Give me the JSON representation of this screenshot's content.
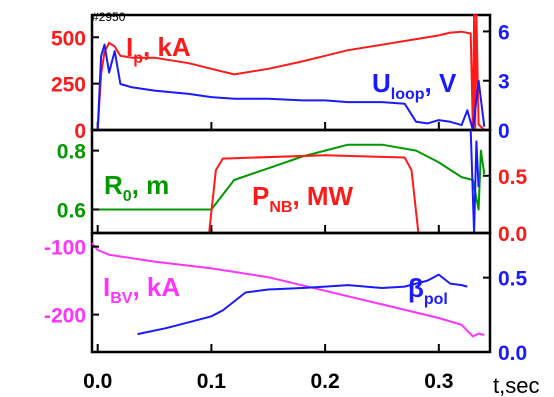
{
  "chart_data": {
    "type": "line",
    "shot": "#2950",
    "x_tick_labels": [
      "0.0",
      "0.1",
      "0.2",
      "0.3"
    ],
    "x_ticks": [
      0.0,
      0.1,
      0.2,
      0.3
    ],
    "xlim": [
      -0.005,
      0.345
    ],
    "xlabel": "t,sec",
    "colors": {
      "red": "#ff1a1a",
      "blue": "#1a1aff",
      "green": "#009900",
      "magenta": "#ff33ff",
      "black": "#000000"
    },
    "panels": [
      {
        "id": "top",
        "left_axis": {
          "ylim": [
            0,
            620
          ],
          "ticks": [
            0,
            250,
            500
          ],
          "tick_labels": [
            "0",
            "250",
            "500"
          ],
          "color": "#ff1a1a"
        },
        "right_axis": {
          "ylim": [
            0,
            7
          ],
          "ticks": [
            0,
            3,
            6
          ],
          "tick_labels": [
            "0",
            "3",
            "6"
          ],
          "color": "#1a1aff"
        },
        "series": [
          {
            "name": "Ip, kA",
            "label_main": "I",
            "label_sub": "p",
            "label_rest": ", kA",
            "axis": "left",
            "color": "#ff1a1a",
            "x": [
              0.0,
              0.003,
              0.006,
              0.01,
              0.015,
              0.02,
              0.03,
              0.05,
              0.08,
              0.1,
              0.12,
              0.15,
              0.18,
              0.2,
              0.22,
              0.25,
              0.28,
              0.3,
              0.31,
              0.32,
              0.328,
              0.33,
              0.331,
              0.332,
              0.333,
              0.335,
              0.34
            ],
            "y": [
              0,
              300,
              420,
              470,
              450,
              400,
              390,
              390,
              360,
              330,
              300,
              330,
              370,
              400,
              430,
              460,
              490,
              510,
              525,
              530,
              520,
              0,
              620,
              0,
              620,
              30,
              0
            ]
          },
          {
            "name": "Uloop, V",
            "label_main": "U",
            "label_sub": "loop",
            "label_rest": ", V",
            "axis": "right",
            "color": "#1a1aff",
            "x": [
              0.0,
              0.003,
              0.006,
              0.01,
              0.015,
              0.02,
              0.03,
              0.05,
              0.08,
              0.1,
              0.12,
              0.15,
              0.18,
              0.2,
              0.22,
              0.25,
              0.27,
              0.28,
              0.29,
              0.3,
              0.31,
              0.32,
              0.325,
              0.33,
              0.335,
              0.34
            ],
            "y": [
              0,
              4.5,
              5.2,
              3.5,
              4.8,
              2.8,
              2.6,
              2.4,
              2.2,
              2.0,
              1.9,
              1.9,
              1.8,
              1.8,
              1.7,
              1.7,
              1.6,
              0.5,
              0.4,
              0.6,
              0.5,
              0.3,
              1.2,
              0.0,
              3.0,
              0.2
            ]
          }
        ]
      },
      {
        "id": "middle",
        "left_axis": {
          "ylim": [
            0.52,
            0.87
          ],
          "ticks": [
            0.6,
            0.8
          ],
          "tick_labels": [
            "0.6",
            "0.8"
          ],
          "color": "#009900"
        },
        "right_axis": {
          "ylim": [
            0,
            0.9
          ],
          "ticks": [
            0.0,
            0.5
          ],
          "tick_labels": [
            "0.0",
            "0.5"
          ],
          "color": "#ff1a1a"
        },
        "series": [
          {
            "name": "R0, m",
            "label_main": "R",
            "label_sub": "0",
            "label_rest": ", m",
            "axis": "left",
            "color": "#009900",
            "x": [
              -0.005,
              0.1,
              0.12,
              0.15,
              0.18,
              0.2,
              0.22,
              0.25,
              0.28,
              0.3,
              0.32,
              0.33,
              0.335,
              0.337,
              0.34
            ],
            "y": [
              0.6,
              0.6,
              0.7,
              0.74,
              0.78,
              0.8,
              0.82,
              0.82,
              0.8,
              0.76,
              0.71,
              0.7,
              0.6,
              0.8,
              0.72
            ]
          },
          {
            "name": "PNB, MW",
            "label_main": "P",
            "label_sub": "NB",
            "label_rest": ", MW",
            "axis": "right",
            "color": "#ff1a1a",
            "x": [
              -0.005,
              0.098,
              0.104,
              0.11,
              0.2,
              0.27,
              0.276,
              0.282,
              0.34
            ],
            "y": [
              0.0,
              0.0,
              0.55,
              0.65,
              0.68,
              0.66,
              0.55,
              0.0,
              0.0
            ]
          },
          {
            "name": "Uloop spike",
            "axis": "right",
            "color": "#1a1aff",
            "x": [
              0.328,
              0.331,
              0.333,
              0.335
            ],
            "y": [
              0.9,
              0.0,
              0.8,
              0.4
            ]
          }
        ]
      },
      {
        "id": "bottom",
        "left_axis": {
          "ylim": [
            -255,
            -80
          ],
          "ticks": [
            -200,
            -100
          ],
          "tick_labels": [
            "-200",
            "-100"
          ],
          "color": "#ff33ff"
        },
        "right_axis": {
          "ylim": [
            0,
            0.8
          ],
          "ticks": [
            0.0,
            0.5
          ],
          "tick_labels": [
            "0.0",
            "0.5"
          ],
          "color": "#1a1aff"
        },
        "series": [
          {
            "name": "IBV, kA",
            "label_main": "I",
            "label_sub": "BV",
            "label_rest": ", kA",
            "axis": "left",
            "color": "#ff33ff",
            "x": [
              -0.005,
              0.0,
              0.01,
              0.05,
              0.1,
              0.15,
              0.2,
              0.25,
              0.3,
              0.32,
              0.33,
              0.335,
              0.34
            ],
            "y": [
              -95,
              -105,
              -112,
              -122,
              -132,
              -145,
              -165,
              -185,
              -205,
              -215,
              -232,
              -228,
              -230
            ]
          },
          {
            "name": "βpol",
            "label_main": "β",
            "label_sub": "pol",
            "label_rest": "",
            "axis": "right",
            "color": "#1a1aff",
            "x": [
              0.035,
              0.06,
              0.08,
              0.1,
              0.11,
              0.13,
              0.15,
              0.18,
              0.2,
              0.22,
              0.25,
              0.27,
              0.28,
              0.29,
              0.3,
              0.31,
              0.32,
              0.325
            ],
            "y": [
              0.12,
              0.16,
              0.2,
              0.24,
              0.28,
              0.4,
              0.42,
              0.43,
              0.44,
              0.45,
              0.43,
              0.44,
              0.46,
              0.48,
              0.52,
              0.46,
              0.45,
              0.44
            ]
          }
        ]
      }
    ]
  }
}
